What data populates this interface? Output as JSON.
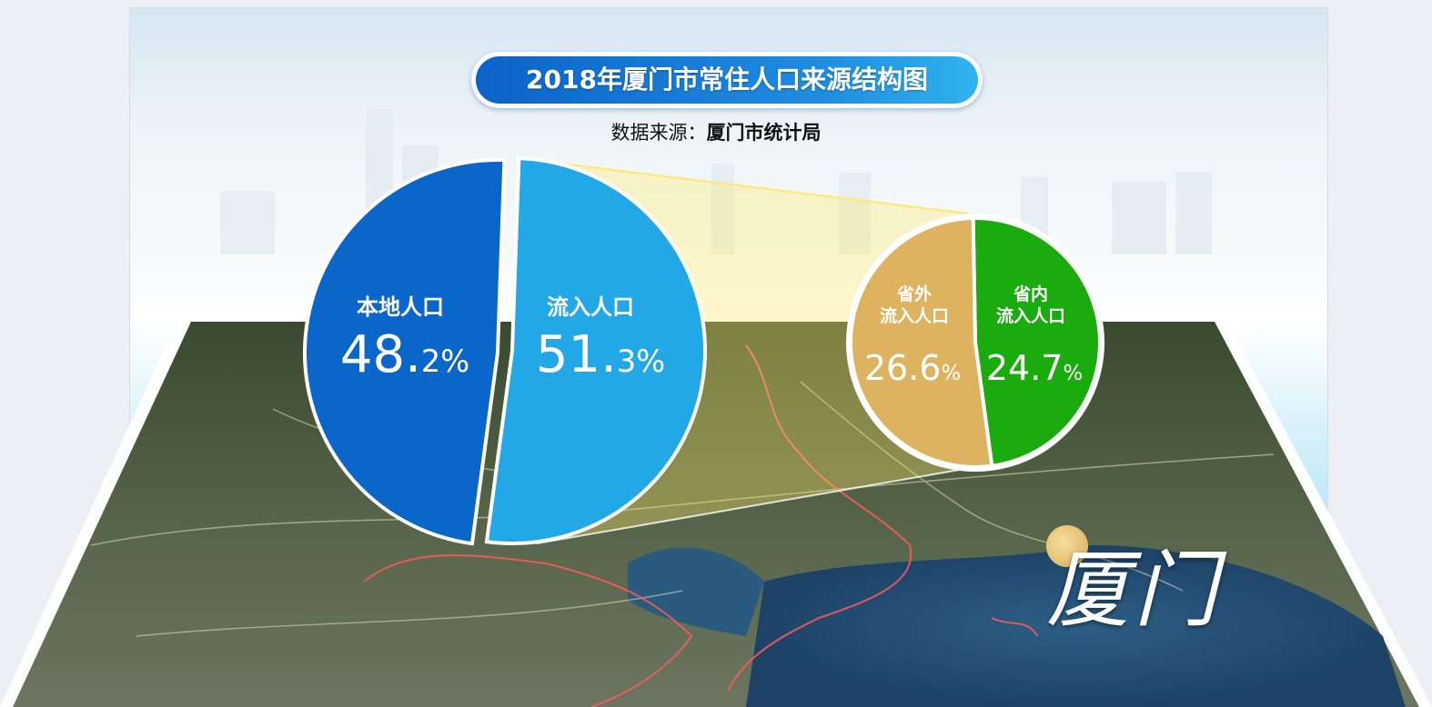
{
  "header": {
    "title": "2018年厦门市常住人口来源结构图",
    "source_label": "数据来源：",
    "source_value": "厦门市统计局"
  },
  "map_label": "厦门",
  "colors": {
    "local": "#0b66c9",
    "inflow": "#22a8e6",
    "outside_province": "#deb360",
    "inside_province": "#1aab0e",
    "beam": "#ffe86a"
  },
  "chart_data": [
    {
      "type": "pie",
      "slices": [
        {
          "label": "本地人口",
          "value": 48.2,
          "text": "48.2%",
          "pct_main": "48.",
          "pct_small": "2%"
        },
        {
          "label": "流入人口",
          "value": 51.3,
          "text": "51.3%",
          "pct_main": "51.",
          "pct_small": "3%"
        }
      ]
    },
    {
      "type": "pie",
      "slices": [
        {
          "label": "省外流入人口",
          "label_line1": "省外",
          "label_line2": "流入人口",
          "value": 26.6,
          "text": "26.6%",
          "pct_main": "26.6",
          "pct_small": "%"
        },
        {
          "label": "省内流入人口",
          "label_line1": "省内",
          "label_line2": "流入人口",
          "value": 24.7,
          "text": "24.7%",
          "pct_main": "24.7",
          "pct_small": "%"
        }
      ]
    }
  ]
}
